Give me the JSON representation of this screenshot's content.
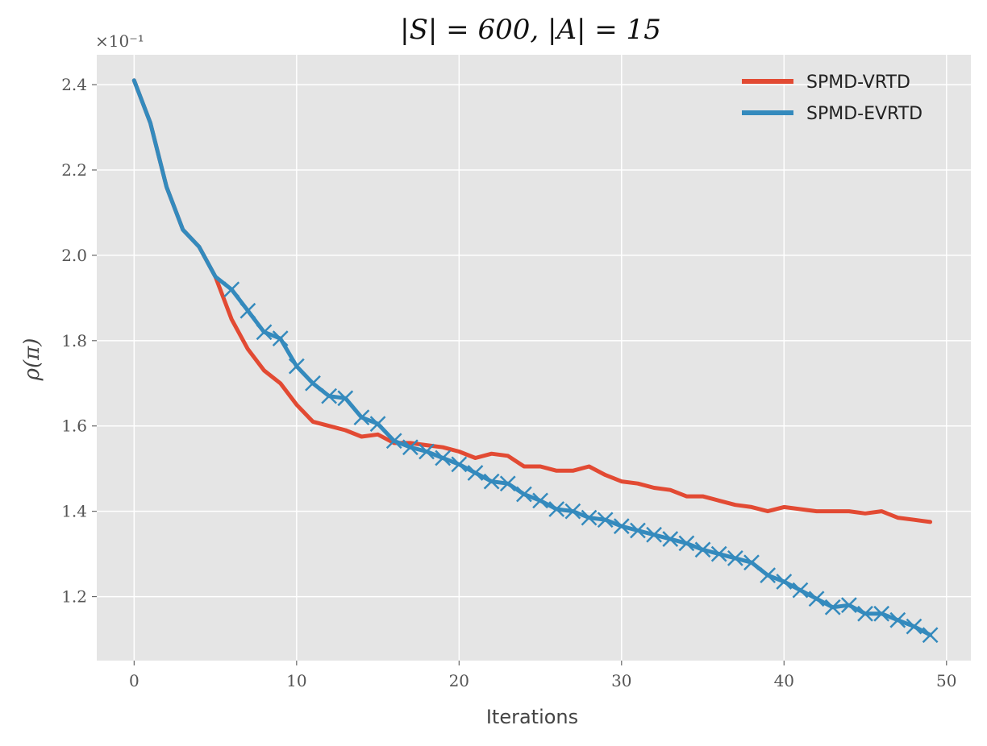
{
  "chart_data": {
    "type": "line",
    "title": "|S| = 600, |A| = 15",
    "xlabel": "Iterations",
    "ylabel": "ρ(π)",
    "y_multiplier": "×10⁻¹",
    "xlim": [
      -2.3,
      51.5
    ],
    "ylim": [
      1.05,
      2.47
    ],
    "xticks": [
      0,
      10,
      20,
      30,
      40,
      50
    ],
    "xtick_labels": [
      "0",
      "10",
      "20",
      "30",
      "40",
      "50"
    ],
    "yticks": [
      1.2,
      1.4,
      1.6,
      1.8,
      2.0,
      2.2,
      2.4
    ],
    "ytick_labels": [
      "1.2",
      "1.4",
      "1.6",
      "1.8",
      "2.0",
      "2.2",
      "2.4"
    ],
    "grid": true,
    "legend_position": "top-right",
    "series": [
      {
        "name": "SPMD-VRTD",
        "color": "#e24a33",
        "marker": "none",
        "x": [
          0,
          1,
          2,
          3,
          4,
          5,
          6,
          7,
          8,
          9,
          10,
          11,
          12,
          13,
          14,
          15,
          16,
          17,
          18,
          19,
          20,
          21,
          22,
          23,
          24,
          25,
          26,
          27,
          28,
          29,
          30,
          31,
          32,
          33,
          34,
          35,
          36,
          37,
          38,
          39,
          40,
          41,
          42,
          43,
          44,
          45,
          46,
          47,
          48,
          49
        ],
        "values": [
          2.41,
          2.31,
          2.16,
          2.06,
          2.02,
          1.95,
          1.85,
          1.78,
          1.73,
          1.7,
          1.65,
          1.61,
          1.6,
          1.59,
          1.575,
          1.58,
          1.56,
          1.56,
          1.555,
          1.55,
          1.54,
          1.525,
          1.535,
          1.53,
          1.505,
          1.505,
          1.495,
          1.495,
          1.505,
          1.485,
          1.47,
          1.465,
          1.455,
          1.45,
          1.435,
          1.435,
          1.425,
          1.415,
          1.41,
          1.4,
          1.41,
          1.405,
          1.4,
          1.4,
          1.4,
          1.395,
          1.4,
          1.385,
          1.38,
          1.375
        ]
      },
      {
        "name": "SPMD-EVRTD",
        "color": "#348abd",
        "marker": "x",
        "x": [
          0,
          1,
          2,
          3,
          4,
          5,
          6,
          7,
          8,
          9,
          10,
          11,
          12,
          13,
          14,
          15,
          16,
          17,
          18,
          19,
          20,
          21,
          22,
          23,
          24,
          25,
          26,
          27,
          28,
          29,
          30,
          31,
          32,
          33,
          34,
          35,
          36,
          37,
          38,
          39,
          40,
          41,
          42,
          43,
          44,
          45,
          46,
          47,
          48,
          49
        ],
        "values": [
          2.41,
          2.31,
          2.16,
          2.06,
          2.02,
          1.95,
          1.92,
          1.87,
          1.82,
          1.805,
          1.74,
          1.7,
          1.67,
          1.665,
          1.62,
          1.605,
          1.565,
          1.55,
          1.54,
          1.525,
          1.51,
          1.49,
          1.47,
          1.465,
          1.44,
          1.425,
          1.405,
          1.4,
          1.385,
          1.38,
          1.365,
          1.355,
          1.345,
          1.335,
          1.325,
          1.31,
          1.3,
          1.29,
          1.28,
          1.25,
          1.235,
          1.215,
          1.195,
          1.175,
          1.18,
          1.16,
          1.16,
          1.145,
          1.13,
          1.11
        ]
      }
    ]
  }
}
